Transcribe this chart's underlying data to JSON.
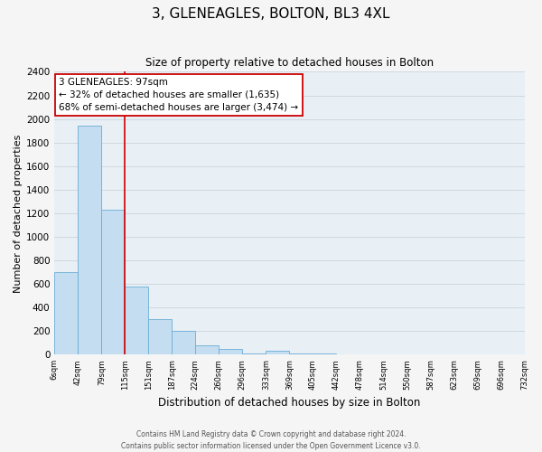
{
  "title": "3, GLENEAGLES, BOLTON, BL3 4XL",
  "subtitle": "Size of property relative to detached houses in Bolton",
  "xlabel": "Distribution of detached houses by size in Bolton",
  "ylabel": "Number of detached properties",
  "bar_color": "#c5ddf0",
  "bar_edge_color": "#6aaed6",
  "grid_color": "#d0d8e0",
  "plot_bg_color": "#e8eff5",
  "fig_bg_color": "#f5f5f5",
  "bin_labels": [
    "6sqm",
    "42sqm",
    "79sqm",
    "115sqm",
    "151sqm",
    "187sqm",
    "224sqm",
    "260sqm",
    "296sqm",
    "333sqm",
    "369sqm",
    "405sqm",
    "442sqm",
    "478sqm",
    "514sqm",
    "550sqm",
    "587sqm",
    "623sqm",
    "659sqm",
    "696sqm",
    "732sqm"
  ],
  "bar_values": [
    700,
    1940,
    1230,
    575,
    300,
    200,
    80,
    45,
    10,
    35,
    10,
    10,
    5,
    0,
    5,
    0,
    0,
    5,
    0,
    0
  ],
  "ylim": [
    0,
    2400
  ],
  "yticks": [
    0,
    200,
    400,
    600,
    800,
    1000,
    1200,
    1400,
    1600,
    1800,
    2000,
    2200,
    2400
  ],
  "annotation_text_line1": "3 GLENEAGLES: 97sqm",
  "annotation_text_line2": "← 32% of detached houses are smaller (1,635)",
  "annotation_text_line3": "68% of semi-detached houses are larger (3,474) →",
  "annotation_box_facecolor": "#ffffff",
  "annotation_box_edgecolor": "#cc0000",
  "property_line_color": "#cc0000",
  "footer_line1": "Contains HM Land Registry data © Crown copyright and database right 2024.",
  "footer_line2": "Contains public sector information licensed under the Open Government Licence v3.0."
}
